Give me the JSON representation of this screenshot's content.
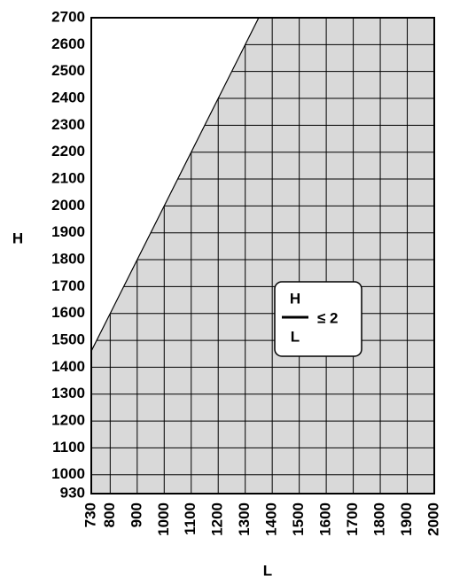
{
  "chart_data": {
    "type": "area",
    "x": [
      730,
      1350,
      2000
    ],
    "values": [
      1460,
      2700,
      2700
    ],
    "color": "#d9d9d9",
    "xlim": [
      730,
      2000
    ],
    "ylim": [
      930,
      2700
    ],
    "xticks": [
      730,
      800,
      900,
      1000,
      1100,
      1200,
      1300,
      1400,
      1500,
      1600,
      1700,
      1800,
      1900,
      2000
    ],
    "yticks": [
      930,
      1000,
      1100,
      1200,
      1300,
      1400,
      1500,
      1600,
      1700,
      1800,
      1900,
      2000,
      2100,
      2200,
      2300,
      2400,
      2500,
      2600,
      2700
    ],
    "grid": true,
    "xlabel": "L",
    "ylabel": "H",
    "annotation": {
      "numerator": "H",
      "denominator": "L",
      "relation": "≤ 2"
    }
  }
}
